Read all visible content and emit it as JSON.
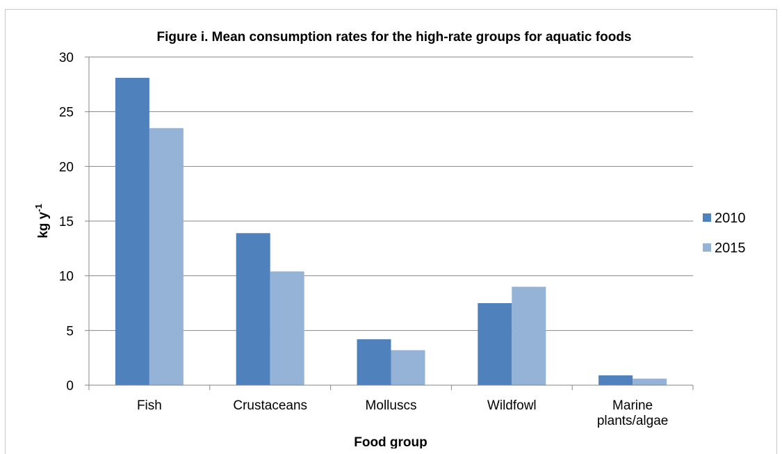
{
  "chart_data": {
    "type": "bar",
    "title": "Figure i.  Mean consumption rates for the high-rate groups for aquatic foods",
    "xlabel": "Food group",
    "ylabel": "kg  y",
    "ylabel_superscript": "-1",
    "categories": [
      [
        "Fish"
      ],
      [
        "Crustaceans"
      ],
      [
        "Molluscs"
      ],
      [
        "Wildfowl"
      ],
      [
        "Marine",
        "plants/algae"
      ]
    ],
    "series": [
      {
        "name": "2010",
        "color": "#4f81bd",
        "values": [
          28.1,
          13.9,
          4.2,
          7.5,
          0.9
        ]
      },
      {
        "name": "2015",
        "color": "#95b3d7",
        "values": [
          23.5,
          10.4,
          3.2,
          9.0,
          0.6
        ]
      }
    ],
    "ylim": [
      0,
      30
    ],
    "yticks": [
      "0",
      "5",
      "10",
      "15",
      "20",
      "25",
      "30"
    ],
    "grid": true,
    "legend_position": "right"
  }
}
